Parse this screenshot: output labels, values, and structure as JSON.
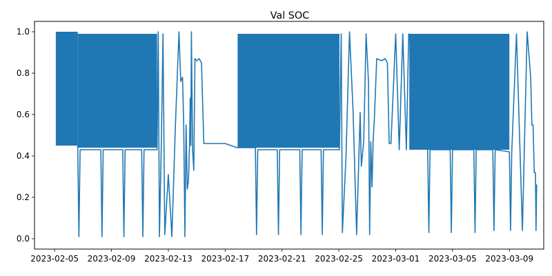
{
  "chart_data": {
    "type": "line",
    "title": "Val SOC",
    "xlabel": "",
    "ylabel": "",
    "xlim": [
      "2023-02-03T14:00",
      "2023-03-11T10:00"
    ],
    "ylim": [
      -0.05,
      1.05
    ],
    "x_ticks": [
      "2023-02-05",
      "2023-02-09",
      "2023-02-13",
      "2023-02-17",
      "2023-02-21",
      "2023-02-25",
      "2023-03-01",
      "2023-03-05",
      "2023-03-09"
    ],
    "y_ticks": [
      0.0,
      0.2,
      0.4,
      0.6,
      0.8,
      1.0
    ],
    "grid": false,
    "legend": "none",
    "series_color": "#1f77b4",
    "oscillating_bands": [
      {
        "start": "2023-02-05T02:00",
        "end": "2023-02-06T15:00",
        "low": 0.45,
        "high": 1.0
      },
      {
        "start": "2023-02-06T15:00",
        "end": "2023-02-12T05:00",
        "low": 0.44,
        "high": 0.99
      },
      {
        "start": "2023-02-17T21:00",
        "end": "2023-02-25T01:00",
        "low": 0.44,
        "high": 0.99
      },
      {
        "start": "2023-03-01T23:00",
        "end": "2023-03-09T00:00",
        "low": 0.43,
        "high": 0.99
      }
    ],
    "series": [
      {
        "x": [
          "2023-02-06T15:00",
          "2023-02-06T17:00",
          "2023-02-06T19:00",
          "2023-02-08T06:00",
          "2023-02-08T08:00",
          "2023-02-08T10:00",
          "2023-02-09T19:00",
          "2023-02-09T21:00",
          "2023-02-09T23:00",
          "2023-02-11T03:00",
          "2023-02-11T05:00",
          "2023-02-11T07:00",
          "2023-02-12T05:00",
          "2023-02-12T07:00",
          "2023-02-12T09:00",
          "2023-02-12T12:00",
          "2023-02-12T15:00",
          "2023-02-12T18:00",
          "2023-02-13T00:00",
          "2023-02-13T06:00",
          "2023-02-13T12:00",
          "2023-02-13T18:00",
          "2023-02-13T21:00",
          "2023-02-14T00:00",
          "2023-02-14T02:00",
          "2023-02-14T04:00",
          "2023-02-14T06:00",
          "2023-02-14T08:00",
          "2023-02-14T10:00",
          "2023-02-14T12:00",
          "2023-02-14T13:00",
          "2023-02-14T14:00",
          "2023-02-14T15:00",
          "2023-02-14T17:00",
          "2023-02-14T19:00",
          "2023-02-14T21:00",
          "2023-02-15T00:00",
          "2023-02-15T04:00",
          "2023-02-15T08:00",
          "2023-02-15T12:00",
          "2023-02-15T16:00",
          "2023-02-15T18:00",
          "2023-02-16T00:00",
          "2023-02-17T00:00",
          "2023-02-17T20:00",
          "2023-02-19T03:00",
          "2023-02-19T05:00",
          "2023-02-19T07:00",
          "2023-02-20T16:00",
          "2023-02-20T18:00",
          "2023-02-20T20:00",
          "2023-02-22T06:00",
          "2023-02-22T08:00",
          "2023-02-22T10:00",
          "2023-02-23T18:00",
          "2023-02-23T20:00",
          "2023-02-23T22:00",
          "2023-02-25T01:00",
          "2023-02-25T04:00",
          "2023-02-25T06:00",
          "2023-02-25T12:00",
          "2023-02-25T18:00",
          "2023-02-26T00:00",
          "2023-02-26T06:00",
          "2023-02-26T12:00",
          "2023-02-26T14:00",
          "2023-02-26T18:00",
          "2023-02-26T22:00",
          "2023-02-27T02:00",
          "2023-02-27T04:00",
          "2023-02-27T06:00",
          "2023-02-27T08:00",
          "2023-02-27T10:00",
          "2023-02-27T12:00",
          "2023-02-27T16:00",
          "2023-02-28T00:00",
          "2023-02-28T06:00",
          "2023-02-28T10:00",
          "2023-02-28T13:00",
          "2023-02-28T16:00",
          "2023-03-01T00:00",
          "2023-03-01T06:00",
          "2023-03-01T12:00",
          "2023-03-01T18:00",
          "2023-03-01T22:00",
          "2023-03-03T06:00",
          "2023-03-03T08:00",
          "2023-03-03T10:00",
          "2023-03-04T20:00",
          "2023-03-04T22:00",
          "2023-03-05T00:00",
          "2023-03-06T12:00",
          "2023-03-06T14:00",
          "2023-03-06T16:00",
          "2023-03-07T20:00",
          "2023-03-07T22:00",
          "2023-03-08T00:00",
          "2023-03-09T00:00",
          "2023-03-09T02:00",
          "2023-03-09T04:00",
          "2023-03-09T12:00",
          "2023-03-09T22:00",
          "2023-03-10T06:00",
          "2023-03-10T12:00",
          "2023-03-10T14:00",
          "2023-03-10T16:00",
          "2023-03-10T18:00",
          "2023-03-10T20:00",
          "2023-03-10T21:00",
          "2023-03-10T22:00",
          "2023-03-10T23:00"
        ],
        "y": [
          0.45,
          0.01,
          0.43,
          0.43,
          0.01,
          0.43,
          0.43,
          0.01,
          0.43,
          0.43,
          0.01,
          0.43,
          0.43,
          1.0,
          0.01,
          0.43,
          0.99,
          0.02,
          0.31,
          0.01,
          0.55,
          1.0,
          0.76,
          0.78,
          0.55,
          0.01,
          0.55,
          0.24,
          0.28,
          0.47,
          0.68,
          0.45,
          1.0,
          0.43,
          0.33,
          0.87,
          0.86,
          0.87,
          0.85,
          0.46,
          0.46,
          0.46,
          0.46,
          0.46,
          0.44,
          0.44,
          0.02,
          0.43,
          0.43,
          0.02,
          0.43,
          0.43,
          0.02,
          0.43,
          0.43,
          0.02,
          0.43,
          0.43,
          0.99,
          0.03,
          0.39,
          1.0,
          0.62,
          0.02,
          0.61,
          0.35,
          0.47,
          0.99,
          0.76,
          0.02,
          0.47,
          0.25,
          0.48,
          0.58,
          0.87,
          0.86,
          0.87,
          0.85,
          0.46,
          0.46,
          0.99,
          0.43,
          0.99,
          0.43,
          0.99,
          0.43,
          0.03,
          0.43,
          0.43,
          0.03,
          0.43,
          0.43,
          0.03,
          0.43,
          0.43,
          0.04,
          0.43,
          0.42,
          0.04,
          0.42,
          0.99,
          0.04,
          1.0,
          0.78,
          0.55,
          0.55,
          0.32,
          0.32,
          0.04,
          0.26,
          0.26
        ]
      }
    ]
  }
}
